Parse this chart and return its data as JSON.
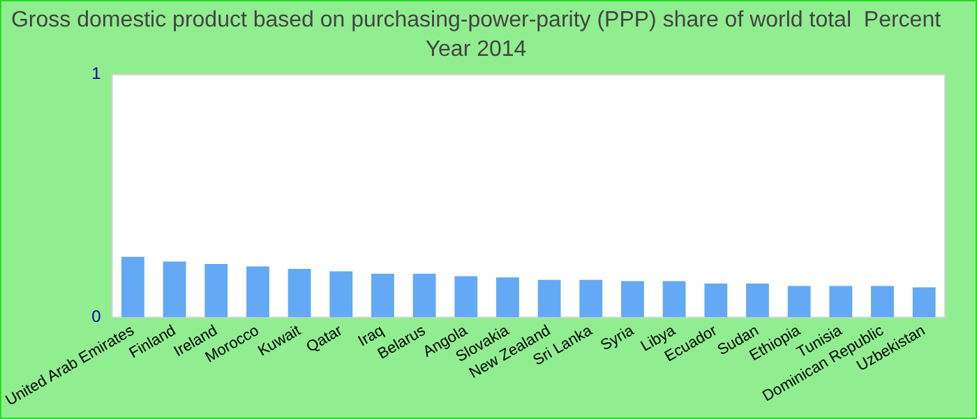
{
  "chart_data": {
    "type": "bar",
    "title": "Gross domestic product based on purchasing-power-parity (PPP) share of world total  Percent",
    "subtitle": "Year 2014",
    "categories": [
      "United Arab Emirates",
      "Finland",
      "Ireland",
      "Morocco",
      "Kuwait",
      "Qatar",
      "Iraq",
      "Belarus",
      "Angola",
      "Slovakia",
      "New Zealand",
      "Sri Lanka",
      "Syria",
      "Libya",
      "Ecuador",
      "Sudan",
      "Ethiopia",
      "Tunisia",
      "Dominican Republic",
      "Uzbekistan"
    ],
    "values": [
      0.25,
      0.23,
      0.22,
      0.21,
      0.2,
      0.19,
      0.18,
      0.18,
      0.17,
      0.165,
      0.155,
      0.155,
      0.15,
      0.15,
      0.14,
      0.14,
      0.13,
      0.13,
      0.13,
      0.124
    ],
    "color": "#63a9f5",
    "ylim": [
      0,
      1
    ],
    "yticks": [
      0,
      1
    ],
    "grid": false,
    "legend": false
  }
}
